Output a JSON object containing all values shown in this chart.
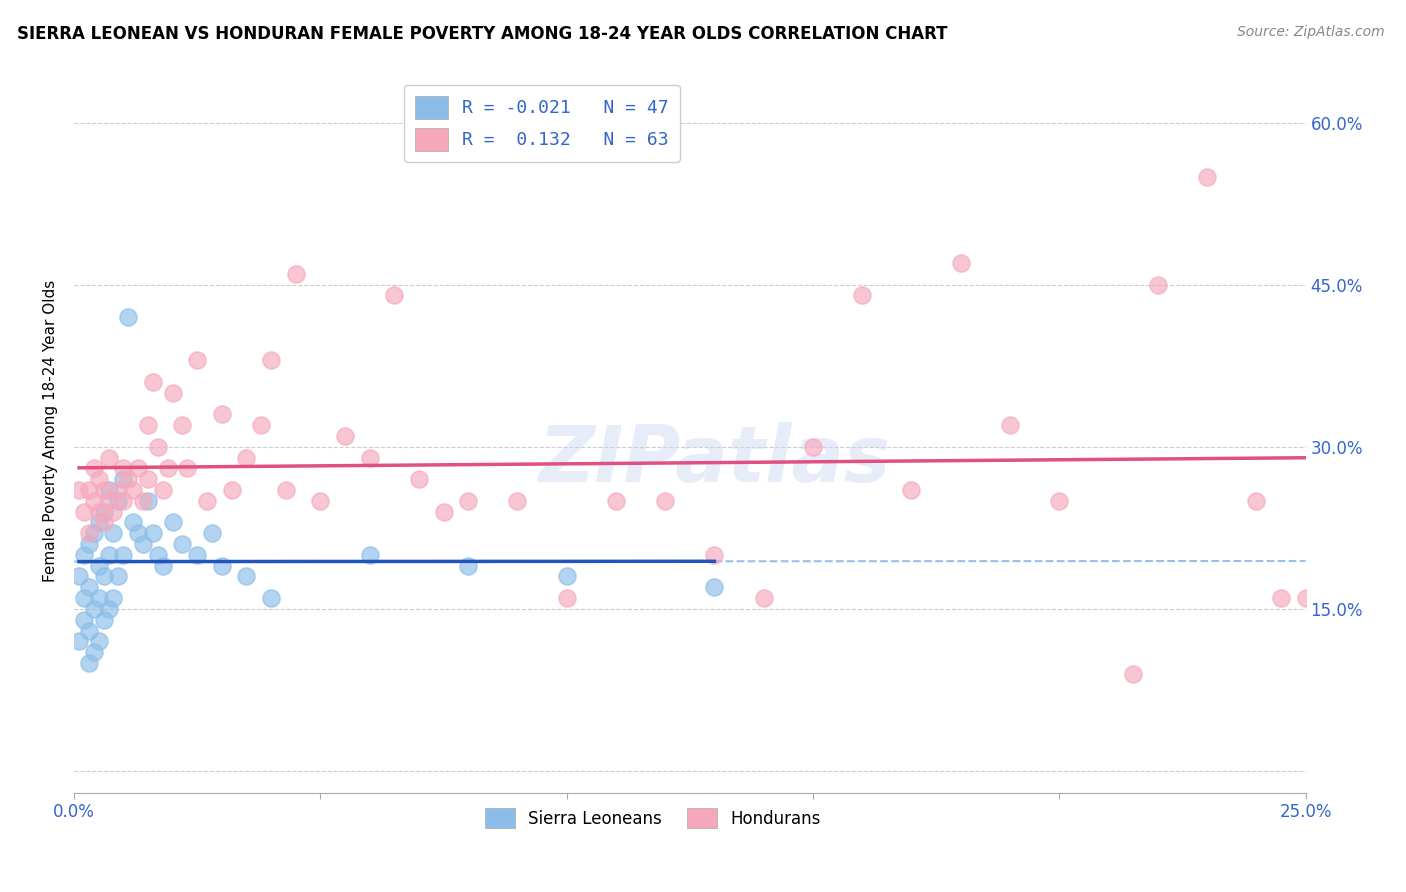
{
  "title": "SIERRA LEONEAN VS HONDURAN FEMALE POVERTY AMONG 18-24 YEAR OLDS CORRELATION CHART",
  "source": "Source: ZipAtlas.com",
  "ylabel": "Female Poverty Among 18-24 Year Olds",
  "xlim": [
    0.0,
    0.25
  ],
  "ylim": [
    -0.02,
    0.65
  ],
  "yticks": [
    0.0,
    0.15,
    0.3,
    0.45,
    0.6
  ],
  "xticks": [
    0.0,
    0.05,
    0.1,
    0.15,
    0.2,
    0.25
  ],
  "xtick_labels": [
    "0.0%",
    "",
    "",
    "",
    "",
    "25.0%"
  ],
  "ytick_labels": [
    "",
    "15.0%",
    "30.0%",
    "45.0%",
    "60.0%"
  ],
  "sl_color": "#8bbde8",
  "hon_color": "#f5a8bc",
  "sl_line_color": "#2255bb",
  "hon_line_color": "#e05080",
  "sl_dash_color": "#99bfe8",
  "hon_dash_color": "#f5a8bc",
  "sl_R": -0.021,
  "sl_N": 47,
  "hon_R": 0.132,
  "hon_N": 63,
  "watermark": "ZIPatlas",
  "sierra_x": [
    0.001,
    0.001,
    0.002,
    0.002,
    0.002,
    0.003,
    0.003,
    0.003,
    0.003,
    0.004,
    0.004,
    0.004,
    0.005,
    0.005,
    0.005,
    0.005,
    0.006,
    0.006,
    0.006,
    0.007,
    0.007,
    0.007,
    0.008,
    0.008,
    0.009,
    0.009,
    0.01,
    0.01,
    0.011,
    0.012,
    0.013,
    0.014,
    0.015,
    0.016,
    0.017,
    0.018,
    0.02,
    0.022,
    0.025,
    0.028,
    0.03,
    0.035,
    0.04,
    0.06,
    0.08,
    0.1,
    0.13
  ],
  "sierra_y": [
    0.12,
    0.18,
    0.14,
    0.16,
    0.2,
    0.1,
    0.13,
    0.17,
    0.21,
    0.11,
    0.15,
    0.22,
    0.12,
    0.16,
    0.19,
    0.23,
    0.14,
    0.18,
    0.24,
    0.15,
    0.2,
    0.26,
    0.16,
    0.22,
    0.18,
    0.25,
    0.2,
    0.27,
    0.42,
    0.23,
    0.22,
    0.21,
    0.25,
    0.22,
    0.2,
    0.19,
    0.23,
    0.21,
    0.2,
    0.22,
    0.19,
    0.18,
    0.16,
    0.2,
    0.19,
    0.18,
    0.17
  ],
  "honduran_x": [
    0.001,
    0.002,
    0.003,
    0.003,
    0.004,
    0.004,
    0.005,
    0.005,
    0.006,
    0.006,
    0.007,
    0.007,
    0.008,
    0.009,
    0.01,
    0.01,
    0.011,
    0.012,
    0.013,
    0.014,
    0.015,
    0.015,
    0.016,
    0.017,
    0.018,
    0.019,
    0.02,
    0.022,
    0.023,
    0.025,
    0.027,
    0.03,
    0.032,
    0.035,
    0.038,
    0.04,
    0.043,
    0.045,
    0.05,
    0.055,
    0.06,
    0.065,
    0.07,
    0.075,
    0.08,
    0.09,
    0.1,
    0.11,
    0.12,
    0.13,
    0.14,
    0.15,
    0.16,
    0.17,
    0.18,
    0.19,
    0.2,
    0.215,
    0.22,
    0.23,
    0.24,
    0.245,
    0.25
  ],
  "honduran_y": [
    0.26,
    0.24,
    0.22,
    0.26,
    0.25,
    0.28,
    0.24,
    0.27,
    0.23,
    0.26,
    0.25,
    0.29,
    0.24,
    0.26,
    0.28,
    0.25,
    0.27,
    0.26,
    0.28,
    0.25,
    0.32,
    0.27,
    0.36,
    0.3,
    0.26,
    0.28,
    0.35,
    0.32,
    0.28,
    0.38,
    0.25,
    0.33,
    0.26,
    0.29,
    0.32,
    0.38,
    0.26,
    0.46,
    0.25,
    0.31,
    0.29,
    0.44,
    0.27,
    0.24,
    0.25,
    0.25,
    0.16,
    0.25,
    0.25,
    0.2,
    0.16,
    0.3,
    0.44,
    0.26,
    0.47,
    0.32,
    0.25,
    0.09,
    0.45,
    0.55,
    0.25,
    0.16,
    0.16
  ]
}
